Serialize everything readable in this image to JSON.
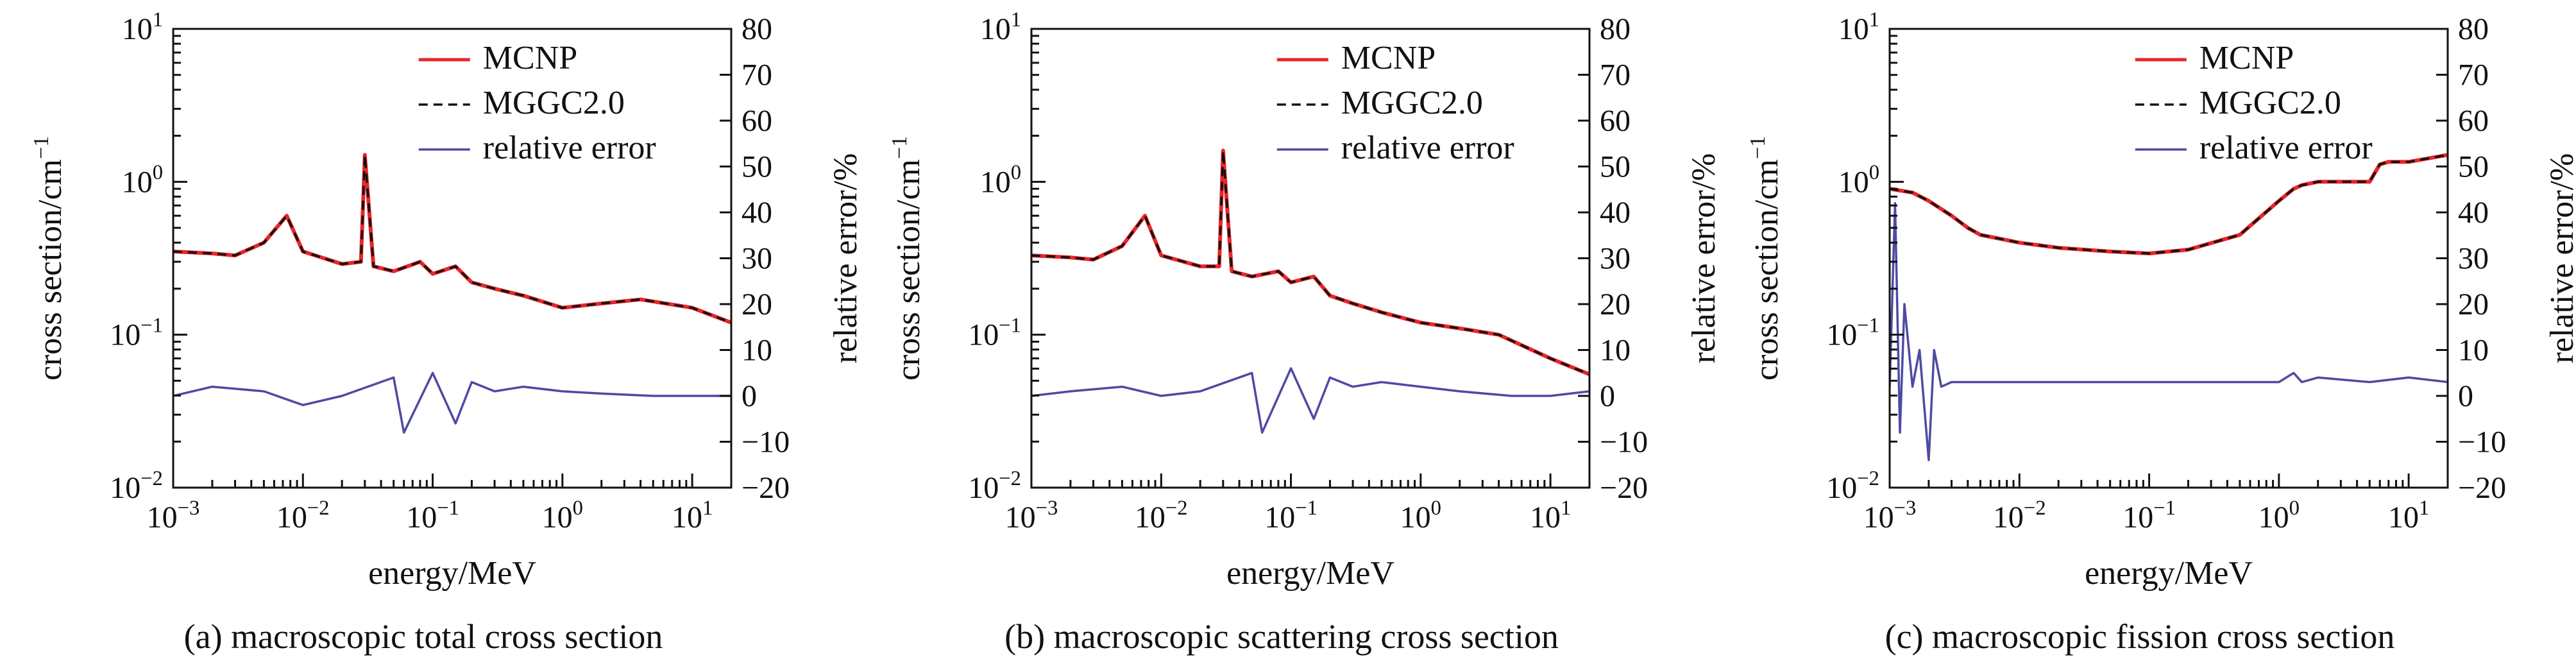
{
  "colors": {
    "mcnp": "#e8262a",
    "mggc": "#111111",
    "error": "#4e4aa3",
    "axis": "#111111"
  },
  "legend": {
    "entries": [
      "MCNP",
      "MGGC2.0",
      "relative error"
    ]
  },
  "x_axis": {
    "label": "energy/MeV",
    "ticks": [
      {
        "base": "10",
        "exp": "−3"
      },
      {
        "base": "10",
        "exp": "−2"
      },
      {
        "base": "10",
        "exp": "−1"
      },
      {
        "base": "10",
        "exp": "0"
      },
      {
        "base": "10",
        "exp": "1"
      }
    ]
  },
  "y_left_axis": {
    "label_main": "cross section/cm",
    "label_exp": "−1",
    "ticks": [
      {
        "base": "10",
        "exp": "1"
      },
      {
        "base": "10",
        "exp": "0"
      },
      {
        "base": "10",
        "exp": "−1"
      },
      {
        "base": "10",
        "exp": "−2"
      }
    ]
  },
  "y_right_axis": {
    "label": "relative error/%",
    "ticks": [
      "80",
      "70",
      "60",
      "50",
      "40",
      "30",
      "20",
      "10",
      "0",
      "−10",
      "−20"
    ]
  },
  "chart_data": [
    {
      "type": "line",
      "caption": "(a) macroscopic total cross section",
      "xlabel": "energy/MeV",
      "ylabel": "cross section/cm−1",
      "y2label": "relative error/%",
      "xscale": "log",
      "xlim": [
        0.001,
        20
      ],
      "yscale": "log",
      "ylim": [
        0.01,
        10
      ],
      "y2lim": [
        -20,
        80
      ],
      "legend_position": "top-right",
      "series": [
        {
          "name": "MCNP",
          "axis": "left",
          "x": [
            0.001,
            0.002,
            0.003,
            0.005,
            0.0075,
            0.01,
            0.02,
            0.028,
            0.03,
            0.035,
            0.05,
            0.08,
            0.1,
            0.15,
            0.2,
            0.3,
            0.5,
            1,
            2,
            4,
            10,
            20
          ],
          "y": [
            0.35,
            0.34,
            0.33,
            0.4,
            0.6,
            0.35,
            0.29,
            0.3,
            1.5,
            0.28,
            0.26,
            0.3,
            0.25,
            0.28,
            0.22,
            0.2,
            0.18,
            0.15,
            0.16,
            0.17,
            0.15,
            0.12
          ]
        },
        {
          "name": "MGGC2.0",
          "axis": "left",
          "x": [
            0.001,
            0.002,
            0.003,
            0.005,
            0.0075,
            0.01,
            0.02,
            0.028,
            0.03,
            0.035,
            0.05,
            0.08,
            0.1,
            0.15,
            0.2,
            0.3,
            0.5,
            1,
            2,
            4,
            10,
            20
          ],
          "y": [
            0.35,
            0.34,
            0.33,
            0.4,
            0.6,
            0.35,
            0.29,
            0.3,
            1.5,
            0.28,
            0.26,
            0.3,
            0.25,
            0.28,
            0.22,
            0.2,
            0.18,
            0.15,
            0.16,
            0.17,
            0.15,
            0.12
          ]
        },
        {
          "name": "relative error",
          "axis": "right",
          "x": [
            0.001,
            0.002,
            0.005,
            0.01,
            0.02,
            0.05,
            0.06,
            0.1,
            0.15,
            0.2,
            0.3,
            0.5,
            1,
            2,
            5,
            10,
            20
          ],
          "y": [
            0,
            2,
            1,
            -2,
            0,
            4,
            -8,
            5,
            -6,
            3,
            1,
            2,
            1,
            0.5,
            0,
            0,
            0
          ]
        }
      ]
    },
    {
      "type": "line",
      "caption": "(b) macroscopic scattering cross section",
      "xlabel": "energy/MeV",
      "ylabel": "cross section/cm−1",
      "y2label": "relative error/%",
      "xscale": "log",
      "xlim": [
        0.001,
        20
      ],
      "yscale": "log",
      "ylim": [
        0.01,
        10
      ],
      "y2lim": [
        -20,
        80
      ],
      "legend_position": "top-right",
      "series": [
        {
          "name": "MCNP",
          "axis": "left",
          "x": [
            0.001,
            0.002,
            0.003,
            0.005,
            0.0075,
            0.01,
            0.02,
            0.028,
            0.03,
            0.035,
            0.05,
            0.08,
            0.1,
            0.15,
            0.2,
            0.3,
            0.5,
            1,
            2,
            4,
            10,
            20
          ],
          "y": [
            0.33,
            0.32,
            0.31,
            0.38,
            0.6,
            0.33,
            0.28,
            0.28,
            1.6,
            0.26,
            0.24,
            0.26,
            0.22,
            0.24,
            0.18,
            0.16,
            0.14,
            0.12,
            0.11,
            0.1,
            0.07,
            0.055
          ]
        },
        {
          "name": "MGGC2.0",
          "axis": "left",
          "x": [
            0.001,
            0.002,
            0.003,
            0.005,
            0.0075,
            0.01,
            0.02,
            0.028,
            0.03,
            0.035,
            0.05,
            0.08,
            0.1,
            0.15,
            0.2,
            0.3,
            0.5,
            1,
            2,
            4,
            10,
            20
          ],
          "y": [
            0.33,
            0.32,
            0.31,
            0.38,
            0.6,
            0.33,
            0.28,
            0.28,
            1.6,
            0.26,
            0.24,
            0.26,
            0.22,
            0.24,
            0.18,
            0.16,
            0.14,
            0.12,
            0.11,
            0.1,
            0.07,
            0.055
          ]
        },
        {
          "name": "relative error",
          "axis": "right",
          "x": [
            0.001,
            0.002,
            0.005,
            0.01,
            0.02,
            0.05,
            0.06,
            0.1,
            0.15,
            0.2,
            0.3,
            0.5,
            1,
            2,
            5,
            10,
            20
          ],
          "y": [
            0,
            1,
            2,
            0,
            1,
            5,
            -8,
            6,
            -5,
            4,
            2,
            3,
            2,
            1,
            0,
            0,
            1
          ]
        }
      ]
    },
    {
      "type": "line",
      "caption": "(c) macroscopic fission cross section",
      "xlabel": "energy/MeV",
      "ylabel": "cross section/cm−1",
      "y2label": "relative error/%",
      "xscale": "log",
      "xlim": [
        0.001,
        20
      ],
      "yscale": "log",
      "ylim": [
        0.01,
        10
      ],
      "y2lim": [
        -20,
        80
      ],
      "legend_position": "top-right",
      "series": [
        {
          "name": "MCNP",
          "axis": "left",
          "x": [
            0.001,
            0.0015,
            0.002,
            0.003,
            0.004,
            0.005,
            0.01,
            0.02,
            0.05,
            0.1,
            0.2,
            0.5,
            1,
            1.3,
            1.5,
            2,
            3,
            5,
            6,
            7,
            10,
            20
          ],
          "y": [
            0.9,
            0.85,
            0.75,
            0.6,
            0.5,
            0.45,
            0.4,
            0.37,
            0.35,
            0.34,
            0.36,
            0.45,
            0.75,
            0.9,
            0.95,
            1.0,
            1.0,
            1.0,
            1.3,
            1.35,
            1.35,
            1.5
          ]
        },
        {
          "name": "MGGC2.0",
          "axis": "left",
          "x": [
            0.001,
            0.0015,
            0.002,
            0.003,
            0.004,
            0.005,
            0.01,
            0.02,
            0.05,
            0.1,
            0.2,
            0.5,
            1,
            1.3,
            1.5,
            2,
            3,
            5,
            6,
            7,
            10,
            20
          ],
          "y": [
            0.9,
            0.85,
            0.75,
            0.6,
            0.5,
            0.45,
            0.4,
            0.37,
            0.35,
            0.34,
            0.36,
            0.45,
            0.75,
            0.9,
            0.95,
            1.0,
            1.0,
            1.0,
            1.3,
            1.35,
            1.35,
            1.5
          ]
        },
        {
          "name": "relative error",
          "axis": "right",
          "x": [
            0.001,
            0.0011,
            0.0012,
            0.0013,
            0.0015,
            0.0017,
            0.002,
            0.0022,
            0.0025,
            0.003,
            0.005,
            0.01,
            0.1,
            1,
            1.3,
            1.5,
            2,
            5,
            10,
            20
          ],
          "y": [
            2,
            42,
            -8,
            20,
            2,
            10,
            -14,
            10,
            2,
            3,
            3,
            3,
            3,
            3,
            5,
            3,
            4,
            3,
            4,
            3
          ]
        }
      ]
    }
  ]
}
